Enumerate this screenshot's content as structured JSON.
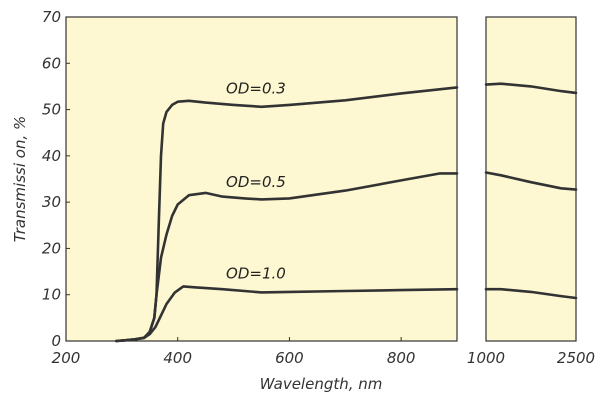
{
  "chart_data": {
    "type": "line",
    "xlabel": "Wavelength, nm",
    "ylabel": "Transmissi on, %",
    "ylim": [
      0,
      70
    ],
    "yticks": [
      0,
      10,
      20,
      30,
      40,
      50,
      60,
      70
    ],
    "grid": false,
    "panels": [
      {
        "xlim": [
          200,
          900
        ],
        "xticks": [
          "200",
          "400",
          "600",
          "800"
        ],
        "xtick_values": [
          200,
          400,
          600,
          800
        ]
      },
      {
        "xlim": [
          1000,
          2500
        ],
        "xticks": [
          "1000",
          "2500"
        ],
        "xtick_values": [
          1000,
          2500
        ]
      }
    ],
    "series": [
      {
        "name": "OD=0.3",
        "points": [
          [
            290,
            0
          ],
          [
            320,
            0.3
          ],
          [
            340,
            0.7
          ],
          [
            350,
            2
          ],
          [
            358,
            5
          ],
          [
            362,
            10
          ],
          [
            366,
            25
          ],
          [
            370,
            40
          ],
          [
            374,
            47
          ],
          [
            380,
            49.5
          ],
          [
            390,
            51
          ],
          [
            400,
            51.7
          ],
          [
            420,
            51.9
          ],
          [
            450,
            51.5
          ],
          [
            500,
            51
          ],
          [
            550,
            50.6
          ],
          [
            600,
            51
          ],
          [
            700,
            52
          ],
          [
            800,
            53.5
          ],
          [
            900,
            54.8
          ],
          [
            1000,
            55.4
          ],
          [
            1250,
            55.6
          ],
          [
            1750,
            55
          ],
          [
            2250,
            54
          ],
          [
            2500,
            53.6
          ]
        ]
      },
      {
        "name": "OD=0.5",
        "points": [
          [
            290,
            0
          ],
          [
            320,
            0.3
          ],
          [
            340,
            0.7
          ],
          [
            350,
            2
          ],
          [
            358,
            5
          ],
          [
            362,
            10
          ],
          [
            370,
            18
          ],
          [
            380,
            23
          ],
          [
            390,
            27
          ],
          [
            400,
            29.5
          ],
          [
            420,
            31.5
          ],
          [
            450,
            32
          ],
          [
            480,
            31.2
          ],
          [
            520,
            30.8
          ],
          [
            550,
            30.6
          ],
          [
            600,
            30.8
          ],
          [
            700,
            32.5
          ],
          [
            800,
            34.7
          ],
          [
            870,
            36.2
          ],
          [
            900,
            36.2
          ],
          [
            1000,
            36.4
          ],
          [
            1250,
            35.8
          ],
          [
            1750,
            34.3
          ],
          [
            2250,
            33
          ],
          [
            2500,
            32.7
          ]
        ]
      },
      {
        "name": "OD=1.0",
        "points": [
          [
            290,
            0
          ],
          [
            320,
            0.3
          ],
          [
            340,
            0.7
          ],
          [
            350,
            1.5
          ],
          [
            360,
            3
          ],
          [
            370,
            5.5
          ],
          [
            380,
            8
          ],
          [
            395,
            10.5
          ],
          [
            410,
            11.8
          ],
          [
            430,
            11.6
          ],
          [
            480,
            11.2
          ],
          [
            550,
            10.5
          ],
          [
            600,
            10.6
          ],
          [
            700,
            10.8
          ],
          [
            800,
            11
          ],
          [
            900,
            11.2
          ],
          [
            1000,
            11.2
          ],
          [
            1250,
            11.2
          ],
          [
            1750,
            10.6
          ],
          [
            2250,
            9.7
          ],
          [
            2500,
            9.3
          ]
        ]
      }
    ],
    "annotations": [
      {
        "text": "OD=0.3",
        "x": 540,
        "y": 53.5
      },
      {
        "text": "OD=0.5",
        "x": 540,
        "y": 33.3
      },
      {
        "text": "OD=1.0",
        "x": 540,
        "y": 13.5
      }
    ]
  }
}
